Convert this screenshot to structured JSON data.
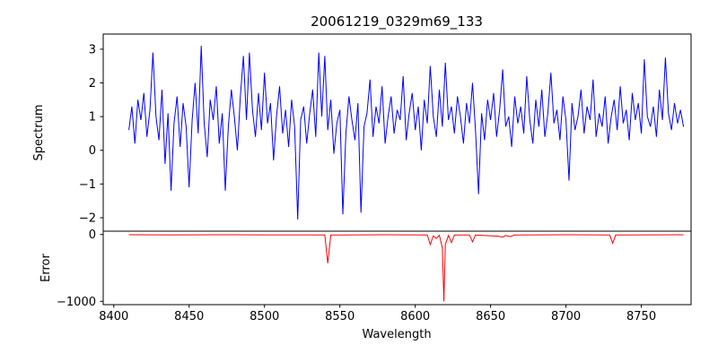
{
  "figure": {
    "title": "20061219_0329m69_133",
    "background": "#ffffff"
  },
  "chart_data": [
    {
      "type": "line",
      "title": "20061219_0329m69_133",
      "xlabel": "",
      "ylabel": "Spectrum",
      "grid": false,
      "legend": "none",
      "xlim": [
        8393,
        8783
      ],
      "ylim": [
        -2.4,
        3.45
      ],
      "xticks": [
        8400,
        8450,
        8500,
        8550,
        8600,
        8650,
        8700,
        8750
      ],
      "yticks": [
        -2,
        -1,
        0,
        1,
        2,
        3
      ],
      "series": [
        {
          "name": "spectrum",
          "color": "#0000ff",
          "x_start": 8410,
          "x_step": 2,
          "values": [
            0.6,
            1.3,
            0.2,
            1.5,
            0.9,
            1.7,
            0.4,
            1.2,
            2.9,
            1.0,
            0.3,
            1.8,
            -0.4,
            1.1,
            -1.2,
            0.8,
            1.6,
            0.1,
            1.4,
            0.7,
            -1.1,
            0.9,
            2.0,
            0.5,
            3.1,
            0.8,
            -0.2,
            1.5,
            0.9,
            1.9,
            0.2,
            1.1,
            -1.2,
            0.7,
            1.8,
            1.0,
            0.0,
            1.6,
            2.8,
            0.9,
            2.9,
            1.2,
            0.4,
            1.7,
            0.6,
            2.3,
            0.8,
            1.4,
            -0.3,
            1.0,
            1.9,
            0.5,
            1.2,
            0.1,
            1.5,
            0.7,
            -2.05,
            0.9,
            1.3,
            0.2,
            1.1,
            1.8,
            0.4,
            2.9,
            1.0,
            2.8,
            0.6,
            1.5,
            -0.1,
            0.8,
            1.2,
            -1.9,
            0.5,
            1.6,
            0.9,
            0.3,
            1.4,
            -1.85,
            0.7,
            1.1,
            2.1,
            0.4,
            1.3,
            0.8,
            1.9,
            0.2,
            1.0,
            1.6,
            0.5,
            1.2,
            0.9,
            2.2,
            0.3,
            1.1,
            1.7,
            0.6,
            1.3,
            0.0,
            1.5,
            0.8,
            2.5,
            1.0,
            0.4,
            1.8,
            0.7,
            2.6,
            0.9,
            1.3,
            0.5,
            1.6,
            1.0,
            0.2,
            1.4,
            0.8,
            2.0,
            0.6,
            -1.3,
            1.1,
            0.3,
            1.5,
            0.9,
            1.7,
            0.4,
            1.2,
            2.4,
            0.7,
            1.0,
            0.1,
            1.6,
            0.8,
            1.3,
            0.5,
            2.2,
            0.9,
            0.2,
            1.5,
            0.7,
            1.8,
            0.4,
            1.1,
            2.3,
            0.8,
            1.2,
            0.3,
            1.6,
            0.9,
            -0.9,
            1.4,
            0.6,
            1.0,
            1.8,
            0.5,
            1.3,
            0.9,
            2.1,
            0.4,
            1.1,
            0.7,
            1.6,
            0.2,
            1.0,
            1.5,
            0.6,
            1.9,
            0.8,
            1.2,
            0.3,
            1.7,
            0.9,
            1.4,
            0.5,
            2.7,
            1.0,
            0.7,
            1.3,
            0.4,
            1.8,
            0.9,
            2.75,
            1.1,
            0.6,
            1.4,
            0.8,
            1.2,
            0.7
          ]
        }
      ]
    },
    {
      "type": "line",
      "title": "",
      "xlabel": "Wavelength",
      "ylabel": "Error",
      "grid": false,
      "legend": "none",
      "xlim": [
        8393,
        8783
      ],
      "ylim": [
        -1050,
        50
      ],
      "xticks": [
        8400,
        8450,
        8500,
        8550,
        8600,
        8650,
        8700,
        8750
      ],
      "yticks": [
        0,
        -1000
      ],
      "series": [
        {
          "name": "error",
          "color": "#ff0000",
          "points": [
            [
              8410,
              -4
            ],
            [
              8440,
              -5
            ],
            [
              8470,
              -4
            ],
            [
              8500,
              -5
            ],
            [
              8530,
              -5
            ],
            [
              8540,
              -6
            ],
            [
              8542,
              -430
            ],
            [
              8544,
              -8
            ],
            [
              8560,
              -5
            ],
            [
              8580,
              -4
            ],
            [
              8600,
              -5
            ],
            [
              8608,
              -6
            ],
            [
              8610,
              -150
            ],
            [
              8612,
              -20
            ],
            [
              8614,
              -60
            ],
            [
              8616,
              -10
            ],
            [
              8618,
              -200
            ],
            [
              8619,
              -1000
            ],
            [
              8620,
              -150
            ],
            [
              8622,
              -15
            ],
            [
              8624,
              -120
            ],
            [
              8626,
              -8
            ],
            [
              8636,
              -6
            ],
            [
              8638,
              -110
            ],
            [
              8640,
              -8
            ],
            [
              8655,
              -25
            ],
            [
              8658,
              -40
            ],
            [
              8660,
              -15
            ],
            [
              8663,
              -30
            ],
            [
              8666,
              -8
            ],
            [
              8680,
              -5
            ],
            [
              8700,
              -4
            ],
            [
              8720,
              -5
            ],
            [
              8729,
              -8
            ],
            [
              8731,
              -130
            ],
            [
              8733,
              -8
            ],
            [
              8750,
              -5
            ],
            [
              8778,
              -4
            ]
          ]
        }
      ]
    }
  ],
  "colors": {
    "spectrum_line": "#0000ff",
    "error_line": "#ff0000",
    "axis": "#000000"
  }
}
